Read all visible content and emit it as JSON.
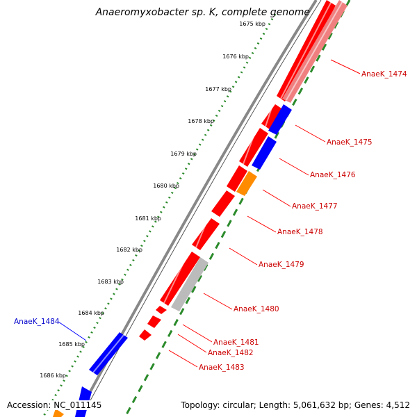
{
  "title": "Anaeromyxobacter sp. K, complete genome",
  "accession_text": "Accession: NC_011145",
  "topology_text": "Topology: circular; Length: 5,061,632 bp; Genes: 4,512",
  "colors": {
    "forward_gene": "#ff0000",
    "forward_gene_faded": "#f08080",
    "reverse_gene": "#0000ff",
    "other_gene": "#ff8c00",
    "pseudo_gene": "#bbbbbb",
    "backbone": "#888888",
    "tick_dots": "#2a8a2a",
    "label_forward": "#cc0000",
    "label_reverse": "#0000cc"
  },
  "scale_ticks": [
    {
      "kbp": 1675,
      "label": "1675 kbp"
    },
    {
      "kbp": 1676,
      "label": "1676 kbp"
    },
    {
      "kbp": 1677,
      "label": "1677 kbp"
    },
    {
      "kbp": 1678,
      "label": "1678 kbp"
    },
    {
      "kbp": 1679,
      "label": "1679 kbp"
    },
    {
      "kbp": 1680,
      "label": "1680 kbp"
    },
    {
      "kbp": 1681,
      "label": "1681 kbp"
    },
    {
      "kbp": 1682,
      "label": "1682 kbp"
    },
    {
      "kbp": 1683,
      "label": "1683 kbp"
    },
    {
      "kbp": 1684,
      "label": "1684 kbp"
    },
    {
      "kbp": 1685,
      "label": "1685 kbp"
    },
    {
      "kbp": 1686,
      "label": "1686 kbp"
    }
  ],
  "genes": [
    {
      "name": "AnaeK_1474",
      "color": "forward_gene_faded",
      "strand": "forward"
    },
    {
      "name": "AnaeK_1475",
      "color": "reverse_gene",
      "strand": "reverse"
    },
    {
      "name": "AnaeK_1476",
      "color": "reverse_gene",
      "strand": "reverse"
    },
    {
      "name": "AnaeK_1477",
      "color": "other_gene",
      "strand": "forward"
    },
    {
      "name": "AnaeK_1478",
      "color": "forward_gene",
      "strand": "forward"
    },
    {
      "name": "AnaeK_1479",
      "color": "forward_gene",
      "strand": "forward"
    },
    {
      "name": "AnaeK_1480",
      "color": "pseudo_gene",
      "strand": "forward"
    },
    {
      "name": "AnaeK_1481",
      "color": "forward_gene",
      "strand": "forward"
    },
    {
      "name": "AnaeK_1482",
      "color": "forward_gene",
      "strand": "forward"
    },
    {
      "name": "AnaeK_1483",
      "color": "forward_gene",
      "strand": "forward"
    },
    {
      "name": "AnaeK_1484",
      "color": "reverse_gene",
      "strand": "reverse"
    }
  ]
}
